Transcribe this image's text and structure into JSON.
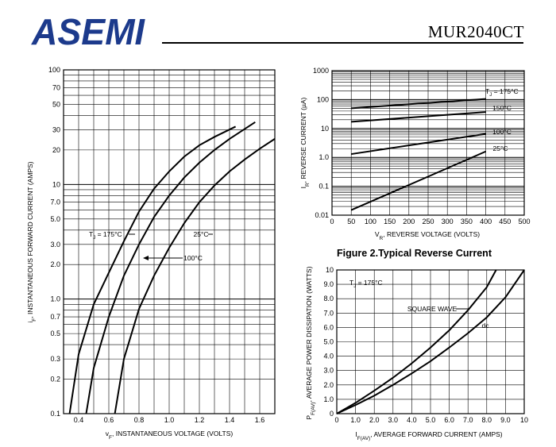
{
  "header": {
    "brand": "ASEMI",
    "brand_color": "#1c3a8c",
    "part_number": "MUR2040CT"
  },
  "chart_data": [
    {
      "type": "line",
      "id": "forward",
      "xlabel_sub": "F",
      "xlabel": "INSTANTANEOUS VOLTAGE (VOLTS)",
      "ylabel_sub": "F",
      "ylabel": "INSTANTANEOUS FORWARD CURRENT (AMPS)",
      "xlim": [
        0.3,
        1.7
      ],
      "ylim": [
        0.1,
        100
      ],
      "yscale": "log",
      "grid": true,
      "xticks": [
        0.4,
        0.6,
        0.8,
        1.0,
        1.2,
        1.4,
        1.6
      ],
      "xtick_labels": [
        "0.4",
        "0.6",
        "0.8",
        "1.0",
        "1.2",
        "1.4",
        "1.6"
      ],
      "yticks": [
        0.1,
        0.2,
        0.3,
        0.5,
        0.7,
        1.0,
        2.0,
        3.0,
        5.0,
        7.0,
        10,
        20,
        30,
        50,
        70,
        100
      ],
      "ytick_labels": [
        "0.1",
        "0.2",
        "0.3",
        "0.5",
        "0.7",
        "1.0",
        "2.0",
        "3.0",
        "5.0",
        "7.0",
        "10",
        "20",
        "30",
        "50",
        "70",
        "100"
      ],
      "series": [
        {
          "name": "TJ = 175°C",
          "x": [
            0.34,
            0.4,
            0.5,
            0.6,
            0.7,
            0.8,
            0.9,
            1.0,
            1.1,
            1.2,
            1.3,
            1.44
          ],
          "y": [
            0.1,
            0.33,
            0.9,
            1.7,
            3.2,
            5.8,
            9.2,
            13,
            17.5,
            22,
            26,
            32
          ]
        },
        {
          "name": "100°C",
          "x": [
            0.45,
            0.5,
            0.6,
            0.7,
            0.8,
            0.9,
            1.0,
            1.1,
            1.2,
            1.3,
            1.4,
            1.57
          ],
          "y": [
            0.1,
            0.25,
            0.7,
            1.6,
            3.0,
            5.2,
            8.0,
            11.5,
            15.5,
            20,
            25,
            35
          ]
        },
        {
          "name": "25°C",
          "x": [
            0.64,
            0.7,
            0.8,
            0.9,
            1.0,
            1.1,
            1.2,
            1.3,
            1.4,
            1.5,
            1.6,
            1.7
          ],
          "y": [
            0.1,
            0.3,
            0.82,
            1.6,
            2.8,
            4.6,
            7.0,
            9.8,
            13,
            16.5,
            20.5,
            25
          ]
        }
      ],
      "labels": {
        "tj175": "175°C",
        "tj100": "100°C",
        "tj25": "25°C"
      }
    },
    {
      "type": "line",
      "id": "reverse",
      "title": "Figure 2.Typical  Reverse  Current",
      "xlabel_sub": "R",
      "xlabel": "REVERSE VOLTAGE (VOLTS)",
      "ylabel_sub": "R",
      "ylabel": "REVERSE CURRENT (µA)",
      "xlim": [
        0,
        500
      ],
      "ylim": [
        0.01,
        1000
      ],
      "yscale": "log",
      "grid": true,
      "xticks": [
        0,
        50,
        100,
        150,
        200,
        250,
        300,
        350,
        400,
        450,
        500
      ],
      "xtick_labels": [
        "0",
        "50",
        "100",
        "150",
        "200",
        "250",
        "300",
        "350",
        "400",
        "450",
        "500"
      ],
      "yticks": [
        0.01,
        0.1,
        1.0,
        10,
        100,
        1000
      ],
      "ytick_labels": [
        "0.01",
        "0.1",
        "1.0",
        "10",
        "100",
        "1000"
      ],
      "series": [
        {
          "name": "TJ = 175°C",
          "x": [
            50,
            400
          ],
          "y": [
            50,
            105
          ]
        },
        {
          "name": "150°C",
          "x": [
            50,
            400
          ],
          "y": [
            17,
            37
          ]
        },
        {
          "name": "100°C",
          "x": [
            50,
            400
          ],
          "y": [
            1.3,
            6.5
          ]
        },
        {
          "name": "25°C",
          "x": [
            50,
            400
          ],
          "y": [
            0.015,
            1.6
          ]
        }
      ],
      "labels": {
        "tj175": "= 175°C",
        "tj150": "150°C",
        "tj100": "100°C",
        "tj25": "25°C"
      }
    },
    {
      "type": "line",
      "id": "power",
      "xlabel_sub": "F(AV)",
      "xlabel": "AVERAGE FORWARD CURRENT (AMPS)",
      "ylabel_sub": "F(AV)",
      "ylabel": "AVERAGE POWER DISSIPATION (WATTS)",
      "xlim": [
        0,
        10
      ],
      "ylim": [
        0,
        10
      ],
      "yscale": "linear",
      "grid": true,
      "xticks": [
        0,
        1,
        2,
        3,
        4,
        5,
        6,
        7,
        8,
        9,
        10
      ],
      "xtick_labels": [
        "0",
        "1.0",
        "2.0",
        "3.0",
        "4.0",
        "5.0",
        "6.0",
        "7.0",
        "8.0",
        "9.0",
        "10"
      ],
      "yticks": [
        0,
        1,
        2,
        3,
        4,
        5,
        6,
        7,
        8,
        9,
        10
      ],
      "ytick_labels": [
        "0",
        "1.0",
        "2.0",
        "3.0",
        "4.0",
        "5.0",
        "6.0",
        "7.0",
        "8.0",
        "9.0",
        "10"
      ],
      "series": [
        {
          "name": "SQUARE WAVE",
          "x": [
            0,
            1,
            2,
            3,
            4,
            5,
            6,
            7,
            8,
            8.5
          ],
          "y": [
            0,
            0.75,
            1.6,
            2.5,
            3.5,
            4.6,
            5.8,
            7.2,
            8.8,
            10
          ]
        },
        {
          "name": "dc",
          "x": [
            0,
            1,
            2,
            3,
            4,
            5,
            6,
            7,
            8,
            9,
            10
          ],
          "y": [
            0,
            0.6,
            1.25,
            2.0,
            2.8,
            3.65,
            4.6,
            5.6,
            6.7,
            8.1,
            10
          ]
        }
      ],
      "labels": {
        "tj": "= 175°C",
        "square": "SQUARE WAVE",
        "dc": "dc"
      }
    }
  ]
}
